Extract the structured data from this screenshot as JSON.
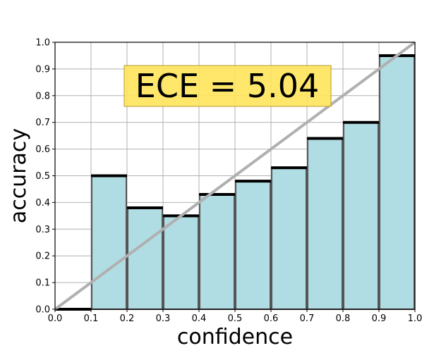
{
  "chart_data": {
    "type": "bar",
    "title": "",
    "xlabel": "confidence",
    "ylabel": "accuracy",
    "xlim": [
      0.0,
      1.0
    ],
    "ylim": [
      0.0,
      1.0
    ],
    "grid": true,
    "x_ticks": [
      "0.0",
      "0.1",
      "0.2",
      "0.3",
      "0.4",
      "0.5",
      "0.6",
      "0.7",
      "0.8",
      "0.9",
      "1.0"
    ],
    "y_ticks": [
      "0.0",
      "0.1",
      "0.2",
      "0.3",
      "0.4",
      "0.5",
      "0.6",
      "0.7",
      "0.8",
      "0.9",
      "1.0"
    ],
    "bins": [
      {
        "x0": 0.0,
        "x1": 0.1,
        "accuracy": 0.0
      },
      {
        "x0": 0.1,
        "x1": 0.2,
        "accuracy": 0.5
      },
      {
        "x0": 0.2,
        "x1": 0.3,
        "accuracy": 0.38
      },
      {
        "x0": 0.3,
        "x1": 0.4,
        "accuracy": 0.35
      },
      {
        "x0": 0.4,
        "x1": 0.5,
        "accuracy": 0.43
      },
      {
        "x0": 0.5,
        "x1": 0.6,
        "accuracy": 0.48
      },
      {
        "x0": 0.6,
        "x1": 0.7,
        "accuracy": 0.53
      },
      {
        "x0": 0.7,
        "x1": 0.8,
        "accuracy": 0.64
      },
      {
        "x0": 0.8,
        "x1": 0.9,
        "accuracy": 0.7
      },
      {
        "x0": 0.9,
        "x1": 1.0,
        "accuracy": 0.95
      }
    ],
    "reference_line": {
      "x": [
        0.0,
        1.0
      ],
      "y": [
        0.0,
        1.0
      ]
    },
    "annotation": "ECE = 5.04",
    "colors": {
      "bar_fill": "#b0dde4",
      "bar_edge": "#000000",
      "grid": "#b0b0b0",
      "diagonal": "#b0b0b0",
      "annotation_bg": "#ffe45c",
      "annotation_border": "#b49a2e"
    }
  }
}
